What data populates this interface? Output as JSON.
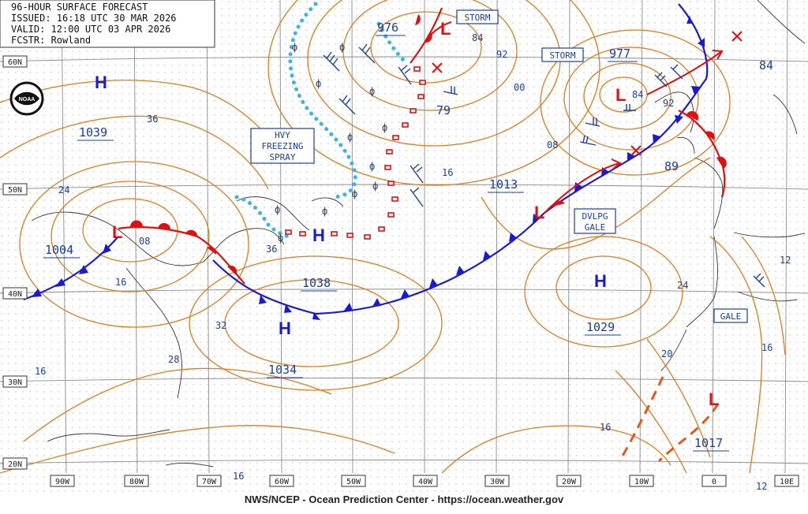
{
  "header": {
    "line1": "96-HOUR SURFACE FORECAST",
    "line2": "ISSUED: 16:18 UTC 30 MAR 2026",
    "line3": "VALID:  12:00 UTC 03 APR 2026",
    "line4": "FCSTR:  Rowland"
  },
  "footer": "NWS/NCEP - Ocean Prediction Center - https://ocean.weather.gov",
  "logo_text": "NOAA",
  "lat_labels": [
    "60N",
    "50N",
    "40N",
    "30N",
    "20N"
  ],
  "lon_labels": [
    "90W",
    "80W",
    "70W",
    "60W",
    "50W",
    "40W",
    "30W",
    "20W",
    "10W",
    "0",
    "10E"
  ],
  "pressure_centers": [
    {
      "type": "H",
      "value": "1039"
    },
    {
      "type": "L",
      "value": "1004"
    },
    {
      "type": "H",
      "value": "1038"
    },
    {
      "type": "H",
      "value": "1034"
    },
    {
      "type": "L",
      "value": "976"
    },
    {
      "type": "L",
      "value": "977"
    },
    {
      "type": "L",
      "value": "1013"
    },
    {
      "type": "H",
      "value": "1029"
    },
    {
      "type": "L",
      "value": "1017"
    }
  ],
  "isobar_labels": [
    "36",
    "24",
    "08",
    "16",
    "36",
    "32",
    "28",
    "16",
    "84",
    "92",
    "00",
    "79",
    "16",
    "08",
    "84",
    "92",
    "89",
    "84",
    "24",
    "20",
    "16",
    "12",
    "16",
    "16",
    "12"
  ],
  "warnings": {
    "hvy_freezing_spray": [
      "HVY",
      "FREEZING",
      "SPRAY"
    ],
    "storm1": "STORM",
    "storm2": "STORM",
    "dvlpg_gale": [
      "DVLPG",
      "GALE"
    ],
    "gale": "GALE"
  },
  "colors": {
    "isobar": "#e07b1a",
    "cold_front": "#1a1ad6",
    "warm_front": "#e01010",
    "label_blue": "#1a3fa0",
    "ice_edge": "#3cb4e6",
    "grid": "#9a9a9a"
  }
}
